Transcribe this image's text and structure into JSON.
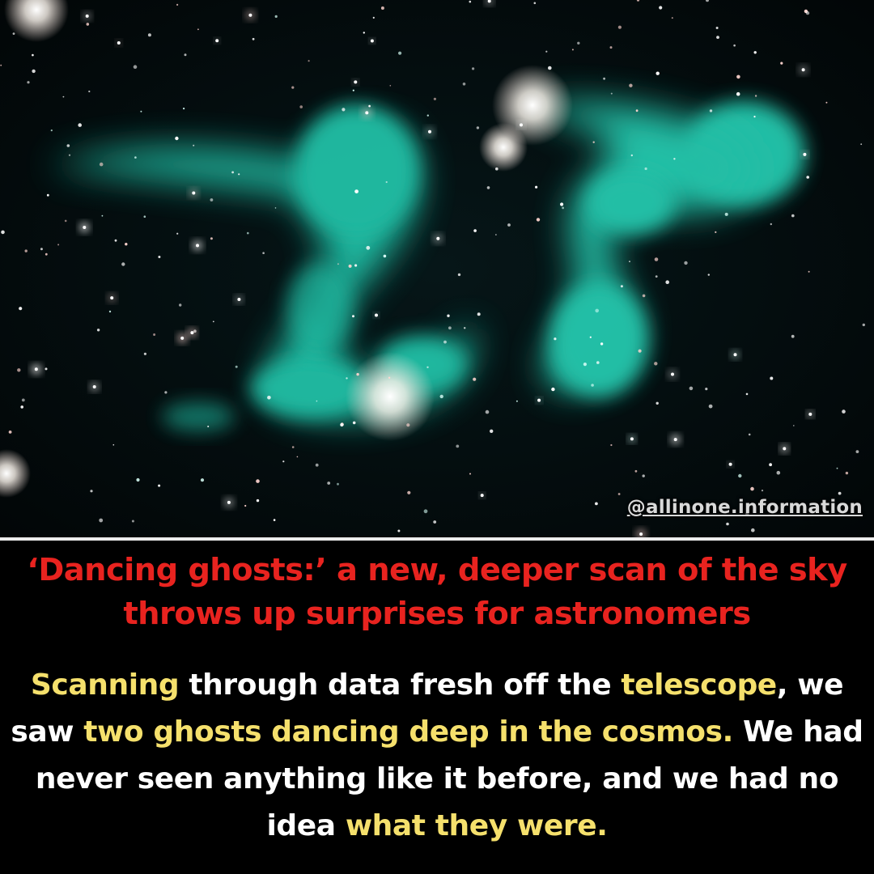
{
  "image": {
    "description_icon": "radio-galaxy-photo",
    "watermark": "@allinone.information"
  },
  "headline": "‘Dancing ghosts:’ a new, deeper scan of the sky throws up surprises for astronomers",
  "body": {
    "segments": [
      {
        "text": "Scanning",
        "highlight": true
      },
      {
        "text": " through data fresh off the ",
        "highlight": false
      },
      {
        "text": "telescope",
        "highlight": true
      },
      {
        "text": ", we saw ",
        "highlight": false
      },
      {
        "text": "two ghosts dancing deep in the cosmos.",
        "highlight": true
      },
      {
        "text": " We had never seen anything like it before, and we had no idea ",
        "highlight": false
      },
      {
        "text": "what they were.",
        "highlight": true
      }
    ]
  },
  "colors": {
    "headline": "#e8231f",
    "highlight": "#f5e06c",
    "body": "#ffffff",
    "background": "#000000",
    "ghost": "#2ee0c4"
  }
}
